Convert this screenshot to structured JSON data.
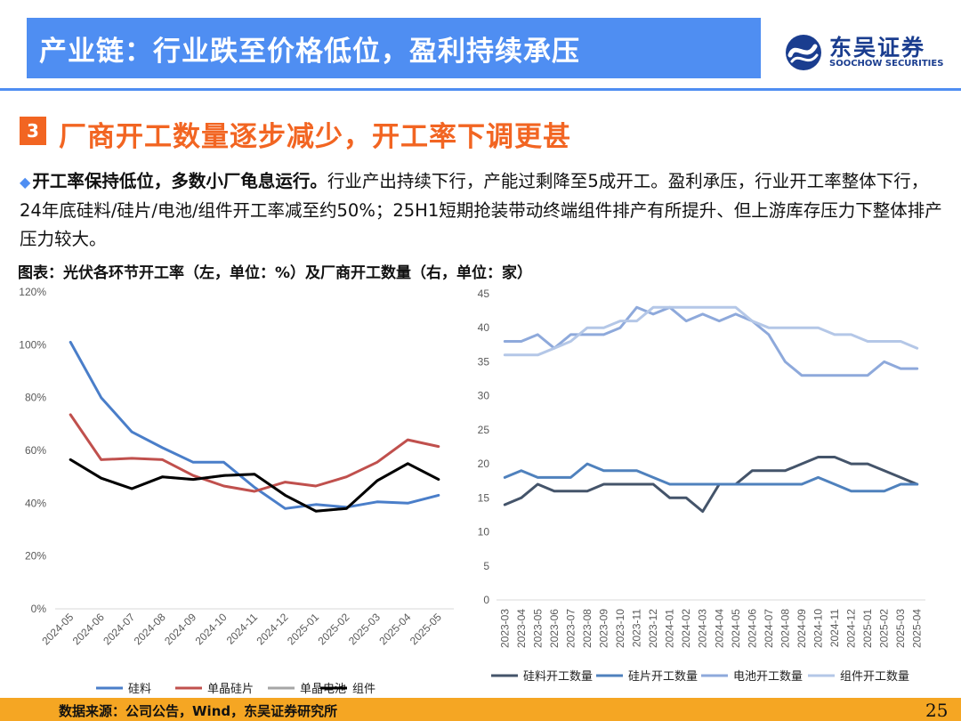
{
  "header": {
    "title": "产业链：行业跌至价格低位，盈利持续承压",
    "logo_cn": "东吴证券",
    "logo_en": "SOOCHOW SECURITIES"
  },
  "section": {
    "number": "3",
    "title": "厂商开工数量逐步减少，开工率下调更甚"
  },
  "bullet": {
    "lead": "开工率保持低位，多数小厂龟息运行。",
    "body": "行业产出持续下行，产能过剩降至5成开工。盈利承压，行业开工率整体下行，24年底硅料/硅片/电池/组件开工率减至约50%；25H1短期抢装带动终端组件排产有所提升、但上游库存压力下整体排产压力较大。"
  },
  "chart_caption": "图表：光伏各环节开工率（左，单位：%）及厂商开工数量（右，单位：家）",
  "footer": {
    "source": "数据来源：公司公告，Wind，东吴证券研究所",
    "page": "25"
  },
  "colors": {
    "accent": "#4f8ef2",
    "orange": "#f26522",
    "footer": "#f5a623",
    "series_polysilicon": "#4a7ec9",
    "series_wafer": "#c0504d",
    "series_cell": "#a5a5a5",
    "series_module": "#000000",
    "r_polysilicon": "#44546a",
    "r_wafer": "#4f81bd",
    "r_cell": "#8ea9db",
    "r_module": "#b4c7e7"
  },
  "chart_data": [
    {
      "type": "line",
      "categories": [
        "2024-05",
        "2024-06",
        "2024-07",
        "2024-08",
        "2024-09",
        "2024-10",
        "2024-11",
        "2024-12",
        "2025-01",
        "2025-02",
        "2025-03",
        "2025-04",
        "2025-05"
      ],
      "y_ticks": [
        "0%",
        "20%",
        "40%",
        "60%",
        "80%",
        "100%",
        "120%"
      ],
      "ylim": [
        0,
        120
      ],
      "grid": false,
      "legend_position": "bottom",
      "series": [
        {
          "name": "硅料",
          "color": "#4a7ec9",
          "values": [
            101,
            80,
            67,
            61,
            55.5,
            55.5,
            46,
            38,
            39.5,
            38.5,
            40.5,
            40,
            43
          ]
        },
        {
          "name": "单晶硅片",
          "color": "#c0504d",
          "values": [
            73.5,
            56.5,
            57,
            56.5,
            50.5,
            46.5,
            44.5,
            48,
            46.5,
            50,
            55.5,
            64,
            61.5
          ]
        },
        {
          "name": "单晶电池",
          "color": "#a5a5a5",
          "values": [
            56.5,
            49.5,
            45.5,
            50,
            49,
            50.5,
            51,
            43,
            37,
            38,
            48.5,
            55,
            49
          ]
        },
        {
          "name": "组件",
          "color": "#000000",
          "values": [
            56.5,
            49.5,
            45.5,
            50,
            49,
            50.5,
            51,
            43,
            37,
            38,
            48.5,
            55,
            49
          ]
        }
      ]
    },
    {
      "type": "line",
      "categories": [
        "2023-03",
        "2023-04",
        "2023-05",
        "2023-06",
        "2023-07",
        "2023-08",
        "2023-09",
        "2023-10",
        "2023-11",
        "2023-12",
        "2024-01",
        "2024-02",
        "2024-03",
        "2024-04",
        "2024-05",
        "2024-06",
        "2024-07",
        "2024-08",
        "2024-09",
        "2024-10",
        "2024-11",
        "2024-12",
        "2025-01",
        "2025-02",
        "2025-03",
        "2025-04"
      ],
      "y_ticks": [
        "0",
        "5",
        "10",
        "15",
        "20",
        "25",
        "30",
        "35",
        "40",
        "45"
      ],
      "ylim": [
        0,
        45
      ],
      "grid": false,
      "legend_position": "bottom",
      "series": [
        {
          "name": "硅料开工数量",
          "color": "#44546a",
          "values": [
            14,
            15,
            17,
            16,
            16,
            16,
            17,
            17,
            17,
            17,
            15,
            15,
            13,
            17,
            17,
            19,
            19,
            19,
            20,
            21,
            21,
            20,
            20,
            19,
            18,
            17
          ]
        },
        {
          "name": "硅片开工数量",
          "color": "#4f81bd",
          "values": [
            18,
            19,
            18,
            18,
            18,
            20,
            19,
            19,
            19,
            18,
            17,
            17,
            17,
            17,
            17,
            17,
            17,
            17,
            17,
            18,
            17,
            16,
            16,
            16,
            17,
            17
          ]
        },
        {
          "name": "电池开工数量",
          "color": "#8ea9db",
          "values": [
            38,
            38,
            39,
            37,
            39,
            39,
            39,
            40,
            43,
            42,
            43,
            41,
            42,
            41,
            42,
            41,
            39,
            35,
            33,
            33,
            33,
            33,
            33,
            35,
            34,
            34
          ]
        },
        {
          "name": "组件开工数量",
          "color": "#b4c7e7",
          "values": [
            36,
            36,
            36,
            37,
            38,
            40,
            40,
            41,
            41,
            43,
            43,
            43,
            43,
            43,
            43,
            41,
            40,
            40,
            40,
            40,
            39,
            39,
            38,
            38,
            38,
            37
          ]
        }
      ]
    }
  ]
}
